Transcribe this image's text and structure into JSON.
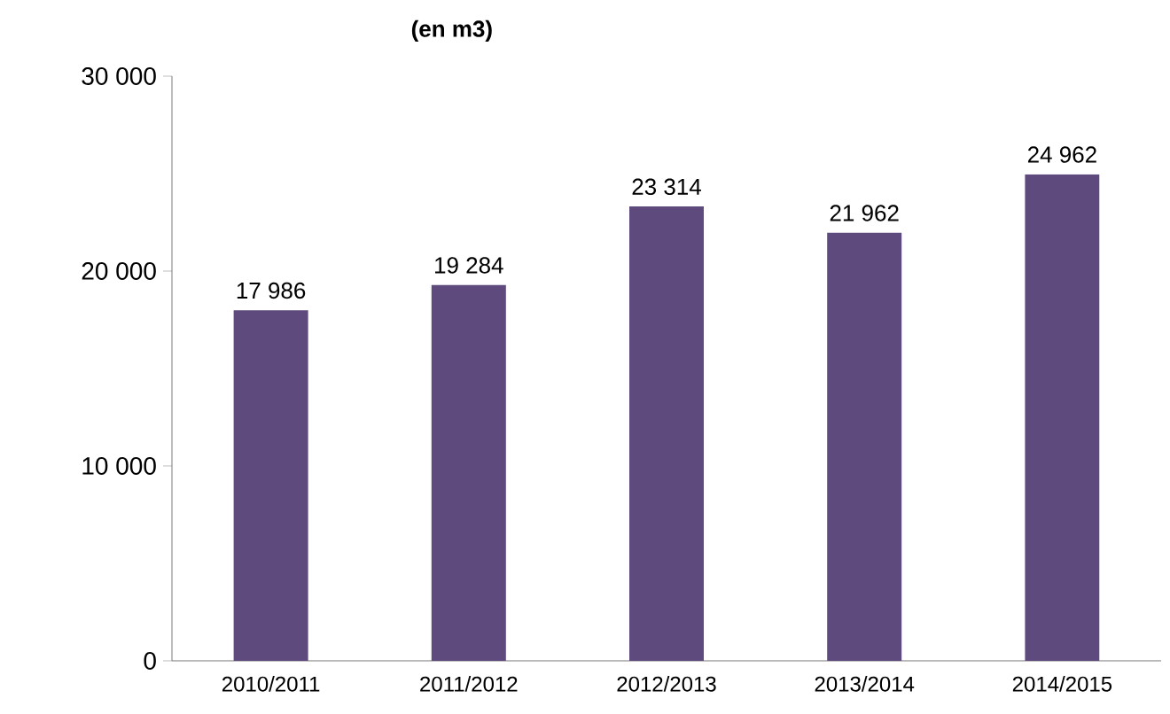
{
  "chart_data": {
    "type": "bar",
    "title": "(en m3)",
    "categories": [
      "2010/2011",
      "2011/2012",
      "2012/2013",
      "2013/2014",
      "2014/2015"
    ],
    "values": [
      17986,
      19284,
      23314,
      21962,
      24962
    ],
    "value_labels": [
      "17 986",
      "19 284",
      "23 314",
      "21 962",
      "24 962"
    ],
    "color": "#5e4a7c",
    "ylim": [
      0,
      30000
    ],
    "yticks": [
      0,
      {
        "value": 10000,
        "label": "10 000"
      },
      {
        "value": 20000,
        "label": "20 000"
      },
      {
        "value": 30000,
        "label": "30 000"
      }
    ]
  }
}
